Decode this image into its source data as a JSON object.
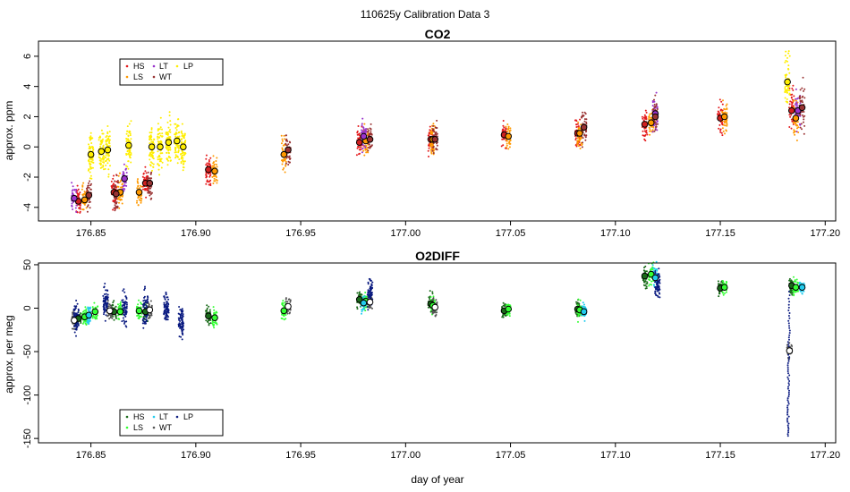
{
  "figure_title": "110625y   Calibration Data 3",
  "shared_x": {
    "xlabel": "day of year",
    "xlim": [
      176.825,
      177.205
    ],
    "ticks": [
      176.85,
      176.9,
      176.95,
      177.0,
      177.05,
      177.1,
      177.15,
      177.2
    ],
    "tick_labels": [
      "176.85",
      "176.90",
      "176.95",
      "177.00",
      "177.05",
      "177.10",
      "177.15",
      "177.20"
    ]
  },
  "colors": {
    "HS": "#e41a1c",
    "LS": "#ff9900",
    "LT": "#9933cc",
    "WT": "#993333",
    "LP": "#ffee00",
    "co2_LT": "#9933cc",
    "o2_HS": "#1a6b1a",
    "o2_LS": "#33ff33",
    "o2_LT": "#22ccee",
    "o2_LP": "#0a1a80",
    "o2_WT": "#555555"
  },
  "chart_data": [
    {
      "type": "scatter",
      "title": "CO2",
      "xlabel": "",
      "ylabel": "approx. ppm",
      "ylim": [
        -4.9,
        7.0
      ],
      "yticks": [
        -4,
        -2,
        0,
        2,
        4,
        6
      ],
      "ytick_labels": [
        "-4",
        "-2",
        "0",
        "2",
        "4",
        "6"
      ],
      "grid": false,
      "legend": {
        "placement": "top-left",
        "entries": [
          {
            "label": "HS",
            "color": "#e41a1c"
          },
          {
            "label": "LS",
            "color": "#ff9900"
          },
          {
            "label": "LT",
            "color": "#9933cc"
          },
          {
            "label": "WT",
            "color": "#993333"
          },
          {
            "label": "LP",
            "color": "#ffee00"
          }
        ]
      },
      "series": [
        {
          "name": "HS",
          "color": "#e41a1c",
          "clusters": [
            [
              176.844,
              -3.6,
              0.45
            ],
            [
              176.861,
              -3.0,
              0.5
            ],
            [
              176.876,
              -2.4,
              0.45
            ],
            [
              176.906,
              -1.5,
              0.45
            ],
            [
              176.978,
              0.3,
              0.5
            ],
            [
              177.012,
              0.5,
              0.5
            ],
            [
              177.047,
              0.8,
              0.35
            ],
            [
              177.082,
              0.9,
              0.5
            ],
            [
              177.114,
              1.5,
              0.5
            ],
            [
              177.15,
              1.9,
              0.55
            ],
            [
              177.184,
              2.4,
              0.7
            ]
          ]
        },
        {
          "name": "LS",
          "color": "#ff9900",
          "clusters": [
            [
              176.847,
              -3.5,
              0.45
            ],
            [
              176.864,
              -3.0,
              0.5
            ],
            [
              176.873,
              -3.0,
              0.45
            ],
            [
              176.909,
              -1.6,
              0.45
            ],
            [
              176.942,
              -0.5,
              0.5
            ],
            [
              176.981,
              0.4,
              0.5
            ],
            [
              177.013,
              0.5,
              0.5
            ],
            [
              177.049,
              0.7,
              0.35
            ],
            [
              177.083,
              0.9,
              0.5
            ],
            [
              177.117,
              1.6,
              0.5
            ],
            [
              177.152,
              2.0,
              0.55
            ],
            [
              177.186,
              1.9,
              0.7
            ]
          ]
        },
        {
          "name": "LT",
          "color": "#9933cc",
          "clusters": [
            [
              176.842,
              -3.4,
              0.45
            ],
            [
              176.866,
              -2.1,
              0.45
            ],
            [
              176.98,
              0.7,
              0.4
            ],
            [
              177.119,
              2.2,
              0.5
            ],
            [
              177.187,
              2.4,
              0.55
            ]
          ]
        },
        {
          "name": "WT",
          "color": "#993333",
          "clusters": [
            [
              176.849,
              -3.2,
              0.45
            ],
            [
              176.862,
              -3.1,
              0.5
            ],
            [
              176.878,
              -2.4,
              0.45
            ],
            [
              176.944,
              -0.2,
              0.5
            ],
            [
              176.983,
              0.5,
              0.5
            ],
            [
              177.014,
              0.5,
              0.5
            ],
            [
              177.085,
              1.3,
              0.5
            ],
            [
              177.119,
              2.0,
              0.5
            ],
            [
              177.189,
              2.6,
              0.7
            ]
          ]
        },
        {
          "name": "LP",
          "color": "#ffee00",
          "clusters": [
            [
              176.85,
              -0.5,
              0.7
            ],
            [
              176.855,
              -0.3,
              0.7
            ],
            [
              176.858,
              -0.2,
              0.7
            ],
            [
              176.868,
              0.1,
              0.7
            ],
            [
              176.879,
              0.0,
              0.7
            ],
            [
              176.883,
              0.0,
              0.7
            ],
            [
              176.887,
              0.3,
              0.7
            ],
            [
              176.891,
              0.4,
              0.7
            ],
            [
              176.894,
              0.0,
              0.7
            ],
            [
              177.182,
              4.3,
              0.9
            ]
          ]
        }
      ]
    },
    {
      "type": "scatter",
      "title": "O2DIFF",
      "xlabel": "day of year",
      "ylabel": "approx. per meg",
      "ylim": [
        -155,
        52
      ],
      "yticks": [
        -150,
        -100,
        -50,
        0,
        50
      ],
      "ytick_labels": [
        "-150",
        "-100",
        "-50",
        "0",
        "50"
      ],
      "grid": false,
      "legend": {
        "placement": "bottom-left",
        "entries": [
          {
            "label": "HS",
            "color": "#1a6b1a"
          },
          {
            "label": "LS",
            "color": "#33ff33"
          },
          {
            "label": "LT",
            "color": "#22ccee"
          },
          {
            "label": "WT",
            "color": "#555555"
          },
          {
            "label": "LP",
            "color": "#0a1a80"
          }
        ]
      },
      "series": [
        {
          "name": "HS",
          "color": "#1a6b1a",
          "clusters": [
            [
              176.844,
              -12,
              5
            ],
            [
              176.861,
              -4,
              5
            ],
            [
              176.876,
              -4,
              5
            ],
            [
              176.906,
              -9,
              5
            ],
            [
              176.978,
              10,
              5
            ],
            [
              177.012,
              5,
              5
            ],
            [
              177.047,
              -3,
              4
            ],
            [
              177.082,
              -1,
              5
            ],
            [
              177.114,
              37,
              6
            ],
            [
              177.15,
              23,
              4
            ],
            [
              177.184,
              26,
              4
            ]
          ]
        },
        {
          "name": "LS",
          "color": "#33ff33",
          "clusters": [
            [
              176.847,
              -10,
              5
            ],
            [
              176.852,
              -4,
              5
            ],
            [
              176.864,
              -4,
              5
            ],
            [
              176.873,
              -3,
              5
            ],
            [
              176.909,
              -11,
              5
            ],
            [
              176.942,
              -3,
              5
            ],
            [
              176.981,
              8,
              5
            ],
            [
              177.013,
              3,
              5
            ],
            [
              177.049,
              -1,
              4
            ],
            [
              177.083,
              -2,
              5
            ],
            [
              177.117,
              39,
              6
            ],
            [
              177.152,
              24,
              4
            ],
            [
              177.186,
              24,
              4
            ]
          ]
        },
        {
          "name": "LT",
          "color": "#22ccee",
          "clusters": [
            [
              176.849,
              -8,
              5
            ],
            [
              176.98,
              6,
              5
            ],
            [
              177.085,
              -4,
              5
            ],
            [
              177.119,
              35,
              6
            ],
            [
              177.189,
              24,
              3
            ]
          ]
        },
        {
          "name": "WT",
          "color": "#555555",
          "clusters": [
            [
              176.842,
              -14,
              5
            ],
            [
              176.859,
              -3,
              5
            ],
            [
              176.878,
              -2,
              5
            ],
            [
              176.944,
              2,
              5
            ],
            [
              176.983,
              7,
              5
            ],
            [
              177.014,
              1,
              5
            ],
            [
              177.183,
              -49,
              4
            ]
          ]
        },
        {
          "name": "LP",
          "color": "#0a1a80",
          "clusters": [
            [
              176.843,
              -12,
              9
            ],
            [
              176.857,
              8,
              10
            ],
            [
              176.866,
              0,
              9
            ],
            [
              176.876,
              -1,
              9
            ],
            [
              176.886,
              0,
              9
            ],
            [
              176.893,
              -14,
              9
            ],
            [
              176.983,
              17,
              8
            ],
            [
              177.12,
              28,
              8
            ]
          ],
          "spike": {
            "x": 177.183,
            "from": 25,
            "to": -147
          }
        }
      ]
    }
  ]
}
